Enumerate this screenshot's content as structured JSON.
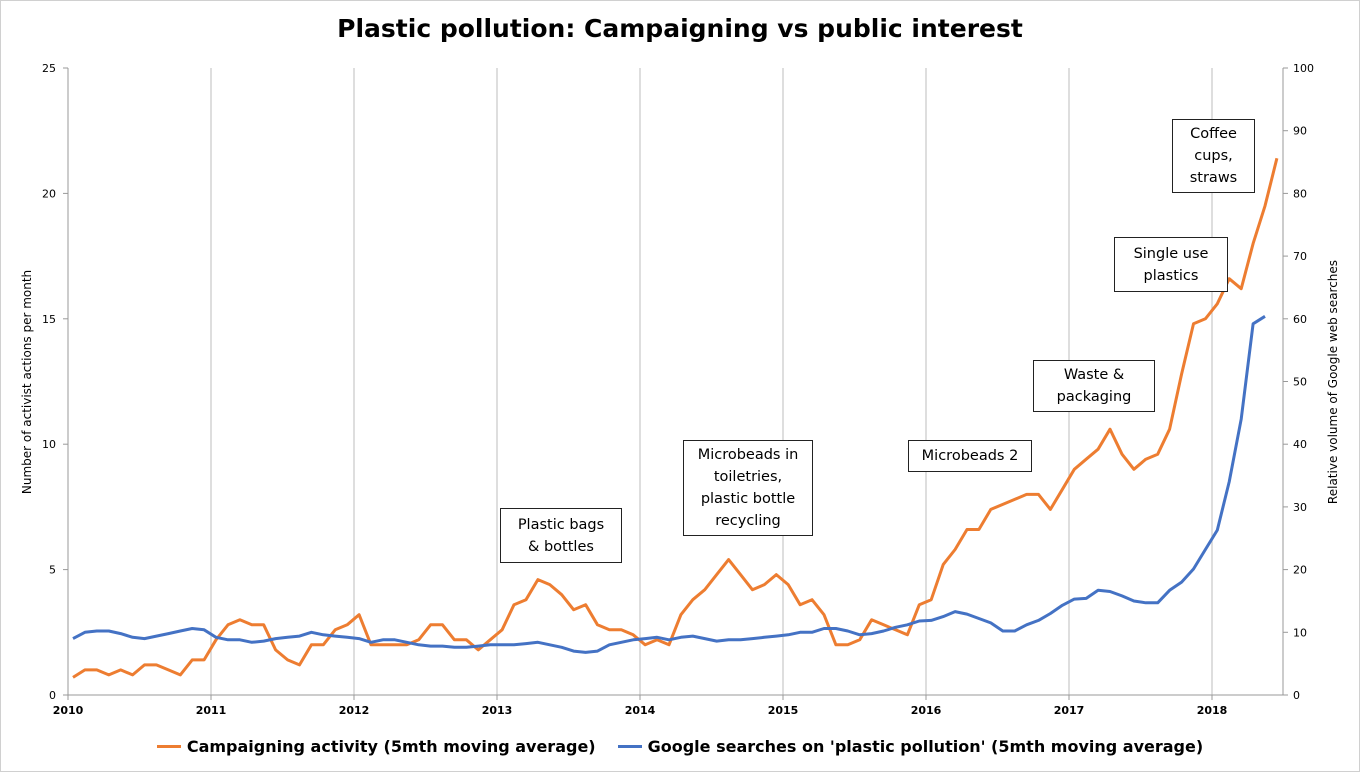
{
  "chart_data": {
    "type": "line",
    "title": "Plastic pollution: Campaigning vs public interest",
    "ylabel": "Number of activist actions per month",
    "y2label": "Relative volume of Google web searches",
    "ylim": [
      0,
      25
    ],
    "y2lim": [
      0,
      100
    ],
    "yticks": [
      "0",
      "5",
      "10",
      "15",
      "20",
      "25"
    ],
    "y2ticks": [
      "0",
      "10",
      "20",
      "30",
      "40",
      "50",
      "60",
      "70",
      "80",
      "90",
      "100"
    ],
    "xticks": [
      "2010",
      "2011",
      "2012",
      "2013",
      "2014",
      "2015",
      "2016",
      "2017",
      "2018"
    ],
    "x_start": "Jan 2010",
    "x_step": "1 month",
    "grid": "vertical at years",
    "legend_position": "bottom",
    "series": [
      {
        "name": "Campaigning activity (5mth moving average)",
        "axis": "left",
        "color": "#ED7D31",
        "values": [
          0.7,
          1.0,
          1.0,
          0.8,
          1.0,
          0.8,
          1.2,
          1.2,
          1.0,
          0.8,
          1.4,
          1.4,
          2.2,
          2.8,
          3.0,
          2.8,
          2.8,
          1.8,
          1.4,
          1.2,
          2.0,
          2.0,
          2.6,
          2.8,
          3.2,
          2.0,
          2.0,
          2.0,
          2.0,
          2.2,
          2.8,
          2.8,
          2.2,
          2.2,
          1.8,
          2.2,
          2.6,
          3.6,
          3.8,
          4.6,
          4.4,
          4.0,
          3.4,
          3.6,
          2.8,
          2.6,
          2.6,
          2.4,
          2.0,
          2.2,
          2.0,
          3.2,
          3.8,
          4.2,
          4.8,
          5.4,
          4.8,
          4.2,
          4.4,
          4.8,
          4.4,
          3.6,
          3.8,
          3.2,
          2.0,
          2.0,
          2.2,
          3.0,
          2.8,
          2.6,
          2.4,
          3.6,
          3.8,
          5.2,
          5.8,
          6.6,
          6.6,
          7.4,
          7.6,
          7.8,
          8.0,
          8.0,
          7.4,
          8.2,
          9.0,
          9.4,
          9.8,
          10.6,
          9.6,
          9.0,
          9.4,
          9.6,
          10.6,
          12.8,
          14.8,
          15.0,
          15.6,
          16.6,
          16.2,
          18.0,
          19.5,
          21.4
        ]
      },
      {
        "name": "Google searches on 'plastic pollution' (5mth moving average)",
        "axis": "right",
        "color": "#4472C4",
        "values": [
          9.0,
          10.0,
          10.2,
          10.2,
          9.8,
          9.2,
          9.0,
          9.4,
          9.8,
          10.2,
          10.6,
          10.4,
          9.2,
          8.8,
          8.8,
          8.4,
          8.6,
          9.0,
          9.2,
          9.4,
          10.0,
          9.6,
          9.4,
          9.2,
          9.0,
          8.4,
          8.8,
          8.8,
          8.4,
          8.0,
          7.8,
          7.8,
          7.6,
          7.6,
          7.8,
          8.0,
          8.0,
          8.0,
          8.2,
          8.4,
          8.0,
          7.6,
          7.0,
          6.8,
          7.0,
          8.0,
          8.4,
          8.8,
          9.0,
          9.2,
          8.8,
          9.2,
          9.4,
          9.0,
          8.6,
          8.8,
          8.8,
          9.0,
          9.2,
          9.4,
          9.6,
          10.0,
          10.0,
          10.6,
          10.6,
          10.2,
          9.6,
          9.8,
          10.2,
          10.8,
          11.2,
          11.8,
          11.9,
          12.5,
          13.3,
          12.9,
          12.2,
          11.5,
          10.2,
          10.2,
          11.2,
          11.9,
          13.0,
          14.3,
          15.3,
          15.4,
          16.7,
          16.5,
          15.8,
          15.0,
          14.7,
          14.7,
          16.7,
          18.0,
          20.1,
          23.2,
          26.3,
          34.0,
          44.0,
          59.2,
          60.4
        ]
      }
    ],
    "annotations": [
      {
        "text": "Plastic bags & bottles",
        "lines": [
          "Plastic bags",
          "& bottles"
        ]
      },
      {
        "text": "Microbeads in toiletries, plastic bottle recycling",
        "lines": [
          "Microbeads in",
          "toiletries,",
          "plastic bottle",
          "recycling"
        ]
      },
      {
        "text": "Microbeads 2",
        "lines": [
          "Microbeads 2"
        ]
      },
      {
        "text": "Waste & packaging",
        "lines": [
          "Waste &",
          "packaging"
        ]
      },
      {
        "text": "Single use plastics",
        "lines": [
          "Single use",
          "plastics"
        ]
      },
      {
        "text": "Coffee cups, straws",
        "lines": [
          "Coffee",
          "cups,",
          "straws"
        ]
      }
    ]
  }
}
